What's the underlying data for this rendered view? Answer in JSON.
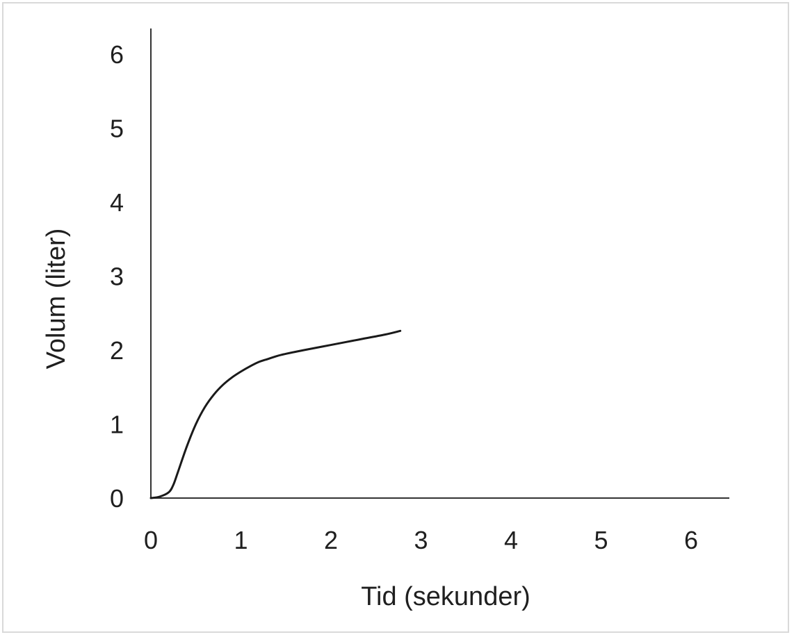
{
  "chart_data": {
    "type": "line",
    "title": "",
    "xlabel": "Tid (sekunder)",
    "ylabel": "Volum (liter)",
    "xlim": [
      0,
      6.4
    ],
    "ylim": [
      0,
      6.4
    ],
    "x_ticks": [
      "0",
      "1",
      "2",
      "3",
      "4",
      "5",
      "6"
    ],
    "y_ticks": [
      "0",
      "1",
      "2",
      "3",
      "4",
      "5",
      "6"
    ],
    "grid": false,
    "line_color": "#1a1a1a",
    "series": [
      {
        "x": [
          0,
          0.1,
          0.2,
          0.25,
          0.3,
          0.4,
          0.5,
          0.6,
          0.7,
          0.8,
          0.9,
          1.0,
          1.1,
          1.2,
          1.3,
          1.4,
          1.5,
          1.7,
          2.0,
          2.3,
          2.6,
          2.77
        ],
        "values": [
          0,
          0.02,
          0.08,
          0.18,
          0.35,
          0.7,
          1.0,
          1.23,
          1.4,
          1.53,
          1.63,
          1.71,
          1.78,
          1.84,
          1.88,
          1.92,
          1.95,
          2.0,
          2.07,
          2.14,
          2.21,
          2.26
        ]
      }
    ]
  }
}
